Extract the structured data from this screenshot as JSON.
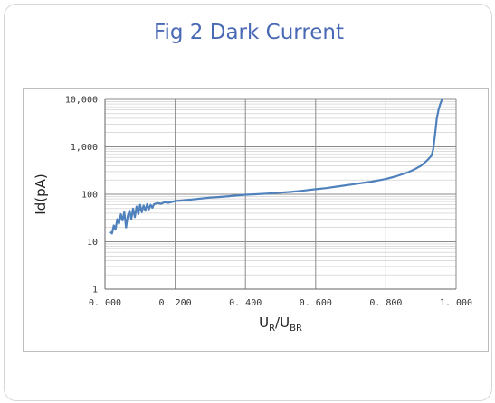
{
  "title": "Fig 2  Dark Current",
  "chart_data": {
    "type": "line",
    "title": "Fig 2  Dark Current",
    "xlabel": "U_R/U_BR",
    "ylabel": "Id(pA)",
    "xlabel_main": "U",
    "xlabel_sub1": "R",
    "xlabel_sep": "/U",
    "xlabel_sub2": "BR",
    "xlim": [
      0,
      1.0
    ],
    "ylim": [
      1,
      10000
    ],
    "yscale": "log",
    "grid": true,
    "x_ticks": [
      "0. 000",
      "0. 200",
      "0. 400",
      "0. 600",
      "0. 800",
      "1. 000"
    ],
    "y_ticks": [
      "1",
      "10",
      "100",
      "1,000",
      "10,000"
    ],
    "line_color": "#4f81bd",
    "series": [
      {
        "x": [
          0.015,
          0.02,
          0.025,
          0.03,
          0.035,
          0.04,
          0.045,
          0.05,
          0.055,
          0.06,
          0.065,
          0.07,
          0.075,
          0.08,
          0.085,
          0.09,
          0.095,
          0.1,
          0.105,
          0.11,
          0.115,
          0.12,
          0.125,
          0.13,
          0.135,
          0.14,
          0.15,
          0.16,
          0.17,
          0.18,
          0.2,
          0.22,
          0.25,
          0.28,
          0.3,
          0.33,
          0.36,
          0.4,
          0.43,
          0.46,
          0.5,
          0.53,
          0.56,
          0.6,
          0.63,
          0.66,
          0.7,
          0.73,
          0.76,
          0.8,
          0.83,
          0.86,
          0.88,
          0.9,
          0.91,
          0.92,
          0.93,
          0.935,
          0.94,
          0.945,
          0.95,
          0.955,
          0.96
        ],
        "y": [
          16,
          15,
          22,
          18,
          30,
          24,
          38,
          28,
          42,
          20,
          35,
          45,
          30,
          50,
          33,
          55,
          38,
          60,
          42,
          58,
          45,
          62,
          48,
          60,
          52,
          62,
          65,
          63,
          68,
          66,
          72,
          74,
          78,
          82,
          85,
          88,
          92,
          98,
          100,
          103,
          108,
          112,
          118,
          128,
          135,
          145,
          160,
          172,
          185,
          210,
          240,
          285,
          330,
          400,
          460,
          540,
          650,
          900,
          1800,
          4000,
          6000,
          8000,
          10000
        ]
      }
    ]
  }
}
